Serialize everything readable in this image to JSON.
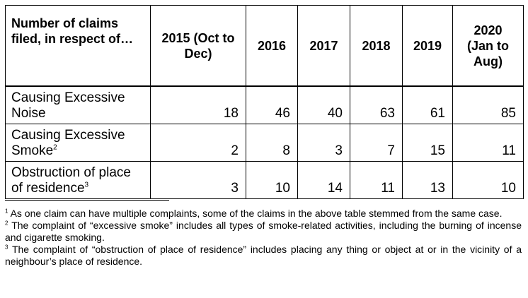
{
  "table": {
    "corner_header": "Number of claims filed, in respect of…",
    "column_headers": [
      "2015 (Oct to Dec)",
      "2016",
      "2017",
      "2018",
      "2019",
      "2020 (Jan to Aug)"
    ],
    "rows": [
      {
        "label": "Causing Excessive Noise",
        "footnote_mark": "",
        "values": [
          "18",
          "46",
          "40",
          "63",
          "61",
          "85"
        ]
      },
      {
        "label": "Causing Excessive Smoke",
        "footnote_mark": "2",
        "values": [
          "2",
          "8",
          "3",
          "7",
          "15",
          "11"
        ]
      },
      {
        "label": "Obstruction of place of residence",
        "footnote_mark": "3",
        "values": [
          "3",
          "10",
          "14",
          "11",
          "13",
          "10"
        ]
      }
    ]
  },
  "footnotes": [
    {
      "mark": "1",
      "text": "As one claim can have multiple complaints, some of the claims in the above table stemmed from the same case."
    },
    {
      "mark": "2",
      "text": "The complaint of “excessive smoke” includes all types of smoke-related activities, including the burning of incense and cigarette smoking."
    },
    {
      "mark": "3",
      "text": "The complaint of “obstruction of place of residence” includes placing any thing or object at or in the vicinity of a neighbour’s place of residence."
    }
  ]
}
